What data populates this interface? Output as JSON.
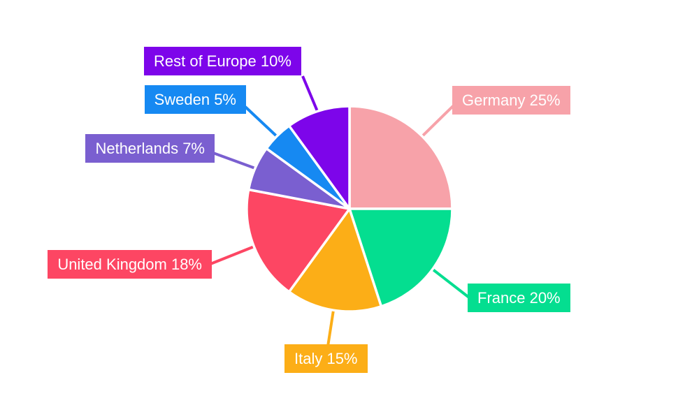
{
  "chart_data": {
    "type": "pie",
    "title": "",
    "unit": "%",
    "start_angle_deg": 0,
    "direction": "clockwise",
    "total": 100,
    "background": "#FFFFFF",
    "label_text_color": "#FFFFFF",
    "gap_color": "#FFFFFF",
    "legend": "none (callout labels with leader lines)",
    "slices": [
      {
        "label": "Germany",
        "value": 25,
        "color": "#F7A2A9",
        "label_text": "Germany 25%"
      },
      {
        "label": "France",
        "value": 20,
        "color": "#04DE90",
        "label_text": "France 20%"
      },
      {
        "label": "Italy",
        "value": 15,
        "color": "#FCAE17",
        "label_text": "Italy 15%"
      },
      {
        "label": "United Kingdom",
        "value": 18,
        "color": "#FD4663",
        "label_text": "United Kingdom 18%"
      },
      {
        "label": "Netherlands",
        "value": 7,
        "color": "#7A5FD0",
        "label_text": "Netherlands 7%"
      },
      {
        "label": "Sweden",
        "value": 5,
        "color": "#1689F2",
        "label_text": "Sweden 5%"
      },
      {
        "label": "Rest of Europe",
        "value": 10,
        "color": "#7D05EA",
        "label_text": "Rest of Europe 10%"
      }
    ]
  }
}
